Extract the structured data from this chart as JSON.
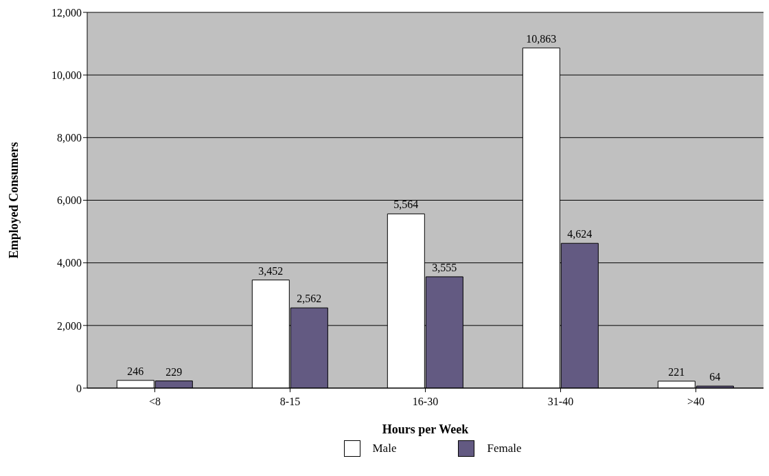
{
  "chart_data": {
    "type": "bar",
    "xlabel": "Hours per Week",
    "ylabel": "Employed Consumers",
    "categories": [
      "<8",
      "8-15",
      "16-30",
      "31-40",
      ">40"
    ],
    "series": [
      {
        "name": "Male",
        "color": "#ffffff",
        "values": [
          246,
          3452,
          5564,
          10863,
          221
        ],
        "value_labels": [
          "246",
          "3,452",
          "5,564",
          "10,863",
          "221"
        ]
      },
      {
        "name": "Female",
        "color": "#635a82",
        "values": [
          229,
          2562,
          3555,
          4624,
          64
        ],
        "value_labels": [
          "229",
          "2,562",
          "3,555",
          "4,624",
          "64"
        ]
      }
    ],
    "ylim": [
      0,
      12000
    ],
    "yticks": [
      {
        "value": 0,
        "label": "0"
      },
      {
        "value": 2000,
        "label": "2,000"
      },
      {
        "value": 4000,
        "label": "4,000"
      },
      {
        "value": 6000,
        "label": "6,000"
      },
      {
        "value": 8000,
        "label": "8,000"
      },
      {
        "value": 10000,
        "label": "10,000"
      },
      {
        "value": 12000,
        "label": "12,000"
      }
    ],
    "grid": "y",
    "legend": "bottom"
  }
}
